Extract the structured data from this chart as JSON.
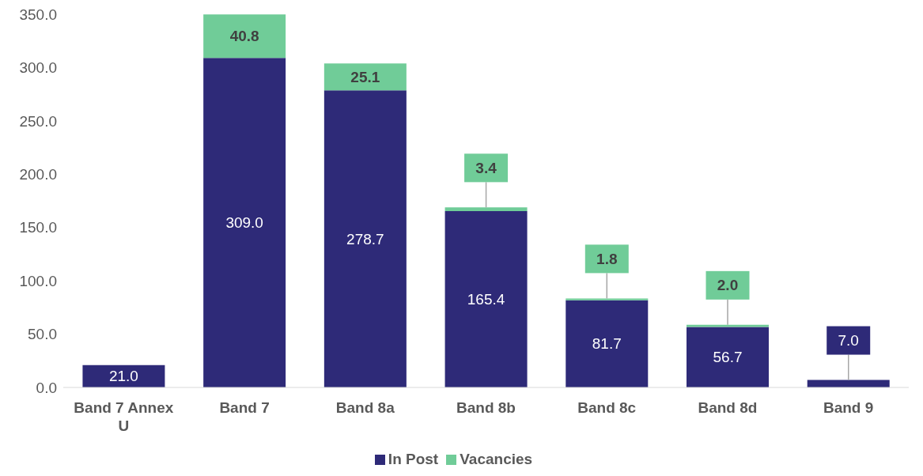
{
  "chart_data": {
    "type": "bar",
    "stacked": true,
    "categories": [
      "Band 7 Annex U",
      "Band 7",
      "Band 8a",
      "Band 8b",
      "Band 8c",
      "Band 8d",
      "Band 9"
    ],
    "series": [
      {
        "name": "In Post",
        "color": "#2e2a78",
        "values": [
          21.0,
          309.0,
          278.7,
          165.4,
          81.7,
          56.7,
          7.0
        ],
        "value_labels": [
          "21.0",
          "309.0",
          "278.7",
          "165.4",
          "81.7",
          "56.7",
          "7.0"
        ]
      },
      {
        "name": "Vacancies",
        "color": "#70cc98",
        "values": [
          null,
          40.8,
          25.1,
          3.4,
          1.8,
          2.0,
          null
        ],
        "value_labels": [
          null,
          "40.8",
          "25.1",
          "3.4",
          "1.8",
          "2.0",
          null
        ]
      }
    ],
    "ylim": [
      0,
      350
    ],
    "yticks": [
      {
        "value": 0,
        "label": "0.0"
      },
      {
        "value": 50,
        "label": "50.0"
      },
      {
        "value": 100,
        "label": "100.0"
      },
      {
        "value": 150,
        "label": "150.0"
      },
      {
        "value": 200,
        "label": "200.0"
      },
      {
        "value": 250,
        "label": "250.0"
      },
      {
        "value": 300,
        "label": "300.0"
      },
      {
        "value": 350,
        "label": "350.0"
      }
    ],
    "grid": false,
    "legend": "bottom"
  }
}
